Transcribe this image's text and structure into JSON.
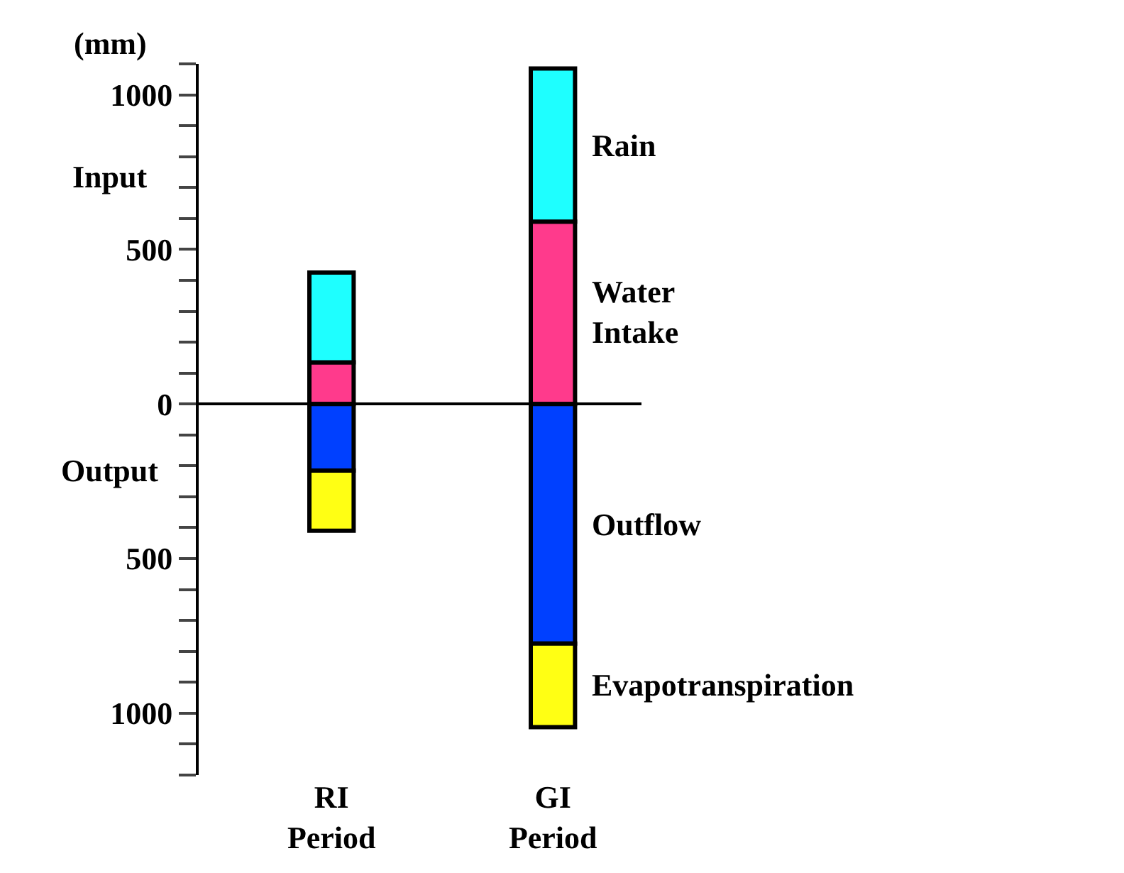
{
  "chart_data": {
    "type": "bar",
    "stacked": true,
    "ylabel": "(mm)",
    "categories": [
      "RI Period",
      "GI Period"
    ],
    "series": [
      {
        "name": "Water Intake",
        "color": "#ff3a8c",
        "values": [
          135,
          590
        ]
      },
      {
        "name": "Rain",
        "color": "#1effff",
        "values": [
          290,
          495
        ]
      },
      {
        "name": "Outflow",
        "color": "#0040ff",
        "values": [
          -215,
          -775
        ]
      },
      {
        "name": "Evapotranspiration",
        "color": "#ffff14",
        "values": [
          -195,
          -270
        ]
      }
    ],
    "ylim": [
      -1200,
      1100
    ],
    "yticks": [
      {
        "value": -1200,
        "label": null
      },
      {
        "value": -1100,
        "label": null
      },
      {
        "value": -1000,
        "label": "1000"
      },
      {
        "value": -900,
        "label": null
      },
      {
        "value": -800,
        "label": null
      },
      {
        "value": -700,
        "label": null
      },
      {
        "value": -600,
        "label": null
      },
      {
        "value": -500,
        "label": "500"
      },
      {
        "value": -400,
        "label": null
      },
      {
        "value": -300,
        "label": null
      },
      {
        "value": -200,
        "label": null
      },
      {
        "value": -100,
        "label": null
      },
      0,
      {
        "value": 100,
        "label": null
      },
      {
        "value": 200,
        "label": null
      },
      {
        "value": 300,
        "label": null
      },
      {
        "value": 400,
        "label": null
      },
      500,
      {
        "value": 600,
        "label": null
      },
      {
        "value": 700,
        "label": null
      },
      {
        "value": 800,
        "label": null
      },
      {
        "value": 900,
        "label": null
      },
      1000,
      {
        "value": 1100,
        "label": null
      }
    ],
    "annotations": [
      "Input",
      "Output"
    ],
    "legend": false
  }
}
